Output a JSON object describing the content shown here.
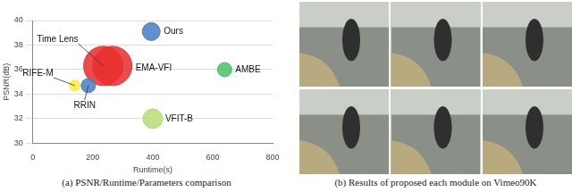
{
  "chart_data": {
    "type": "bubble",
    "x_label": "Runtime(s)",
    "y_label": "PSNR(dB)",
    "x": [
      395,
      235,
      265,
      140,
      185,
      640,
      400
    ],
    "values": [
      39.1,
      36.3,
      36.3,
      34.7,
      34.7,
      36.0,
      32.0
    ],
    "sizes": [
      10,
      22,
      22,
      6,
      8,
      8,
      11
    ],
    "point_labels": [
      "Ours",
      "Time Lens",
      "EMA-VFI",
      "RIFE-M",
      "RRIN",
      "AMBE",
      "VFIT-B"
    ],
    "colors": [
      "#4a7fc4",
      "#e8312f",
      "#e8312f",
      "#f3ee3a",
      "#4a7fc4",
      "#4cc26a",
      "#b8dc7c"
    ],
    "xlim": [
      0,
      800
    ],
    "xticks": [
      0,
      200,
      400,
      600,
      800
    ],
    "ylim": [
      30,
      40
    ],
    "yticks": [
      30,
      32,
      34,
      36,
      38,
      40
    ],
    "grid": "y"
  },
  "captions": [
    "(a) PSNR/Runtime/Parameters comparison",
    "(b) Results of proposed each module on Vimeo90K"
  ]
}
